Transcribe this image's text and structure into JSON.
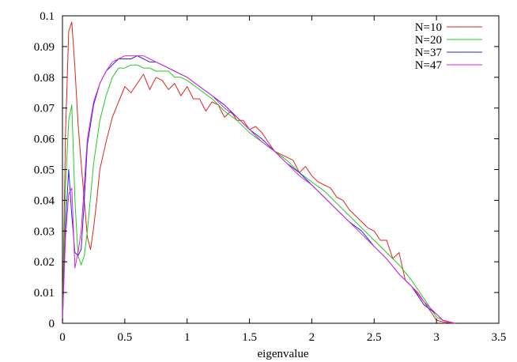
{
  "chart_data": {
    "type": "line",
    "title": "",
    "xlabel": "eigenvalue",
    "ylabel": "",
    "xlim": [
      0,
      3.5
    ],
    "ylim": [
      0,
      0.1
    ],
    "xticks": [
      0,
      0.5,
      1,
      1.5,
      2,
      2.5,
      3,
      3.5
    ],
    "yticks": [
      0,
      0.01,
      0.02,
      0.03,
      0.04,
      0.05,
      0.06,
      0.07,
      0.08,
      0.09,
      0.1
    ],
    "xtick_labels": [
      "0",
      "0.5",
      "1",
      "1.5",
      "2",
      "2.5",
      "3",
      "3.5"
    ],
    "ytick_labels": [
      "0",
      "0.01",
      "0.02",
      "0.03",
      "0.04",
      "0.05",
      "0.06",
      "0.07",
      "0.08",
      "0.09",
      "0.1"
    ],
    "grid": false,
    "legend_position": "top-right",
    "series": [
      {
        "name": "N=10",
        "color": "#e0251f",
        "x": [
          0,
          0.025,
          0.05,
          0.075,
          0.1,
          0.125,
          0.15,
          0.175,
          0.2,
          0.225,
          0.25,
          0.275,
          0.3,
          0.35,
          0.4,
          0.45,
          0.5,
          0.55,
          0.6,
          0.65,
          0.7,
          0.75,
          0.8,
          0.85,
          0.9,
          0.95,
          1,
          1.05,
          1.1,
          1.15,
          1.2,
          1.25,
          1.3,
          1.35,
          1.4,
          1.45,
          1.5,
          1.55,
          1.6,
          1.65,
          1.7,
          1.75,
          1.8,
          1.85,
          1.9,
          1.95,
          2,
          2.05,
          2.1,
          2.15,
          2.2,
          2.25,
          2.3,
          2.35,
          2.4,
          2.45,
          2.5,
          2.55,
          2.6,
          2.65,
          2.7,
          2.75,
          2.8,
          2.85,
          2.9,
          2.95,
          3,
          3.05,
          3.1,
          3.15
        ],
        "values": [
          0.0,
          0.062,
          0.095,
          0.098,
          0.083,
          0.065,
          0.052,
          0.04,
          0.028,
          0.024,
          0.031,
          0.04,
          0.05,
          0.059,
          0.067,
          0.072,
          0.077,
          0.075,
          0.078,
          0.081,
          0.076,
          0.08,
          0.079,
          0.076,
          0.078,
          0.074,
          0.077,
          0.073,
          0.073,
          0.069,
          0.072,
          0.071,
          0.067,
          0.069,
          0.066,
          0.066,
          0.063,
          0.064,
          0.062,
          0.059,
          0.056,
          0.055,
          0.054,
          0.053,
          0.049,
          0.051,
          0.048,
          0.046,
          0.045,
          0.044,
          0.041,
          0.04,
          0.037,
          0.035,
          0.033,
          0.031,
          0.03,
          0.027,
          0.027,
          0.021,
          0.023,
          0.014,
          0.012,
          0.01,
          0.007,
          0.004,
          0.001,
          0.0005,
          0.0002,
          0.0
        ]
      },
      {
        "name": "N=20",
        "color": "#22cc22",
        "x": [
          0,
          0.025,
          0.05,
          0.075,
          0.1,
          0.125,
          0.15,
          0.175,
          0.2,
          0.225,
          0.25,
          0.3,
          0.35,
          0.4,
          0.45,
          0.5,
          0.55,
          0.6,
          0.65,
          0.7,
          0.75,
          0.8,
          0.85,
          0.9,
          0.95,
          1,
          1.1,
          1.2,
          1.3,
          1.4,
          1.5,
          1.6,
          1.7,
          1.8,
          1.9,
          2,
          2.1,
          2.2,
          2.3,
          2.4,
          2.5,
          2.6,
          2.7,
          2.8,
          2.9,
          3,
          3.05,
          3.1,
          3.15
        ],
        "values": [
          0.0,
          0.045,
          0.066,
          0.071,
          0.04,
          0.022,
          0.019,
          0.022,
          0.03,
          0.041,
          0.052,
          0.066,
          0.074,
          0.08,
          0.083,
          0.083,
          0.084,
          0.084,
          0.083,
          0.083,
          0.082,
          0.082,
          0.082,
          0.08,
          0.08,
          0.079,
          0.076,
          0.073,
          0.069,
          0.066,
          0.062,
          0.059,
          0.056,
          0.053,
          0.049,
          0.046,
          0.043,
          0.039,
          0.035,
          0.031,
          0.027,
          0.023,
          0.019,
          0.014,
          0.008,
          0.002,
          0.001,
          0.0005,
          0.0
        ]
      },
      {
        "name": "N=37",
        "color": "#2a2ad6",
        "x": [
          0,
          0.025,
          0.05,
          0.075,
          0.1,
          0.125,
          0.15,
          0.175,
          0.2,
          0.25,
          0.3,
          0.35,
          0.4,
          0.45,
          0.5,
          0.55,
          0.6,
          0.65,
          0.7,
          0.75,
          0.8,
          0.85,
          0.9,
          0.95,
          1,
          1.1,
          1.2,
          1.3,
          1.4,
          1.5,
          1.6,
          1.7,
          1.8,
          1.9,
          2,
          2.1,
          2.2,
          2.3,
          2.4,
          2.5,
          2.6,
          2.7,
          2.8,
          2.9,
          3,
          3.05,
          3.1,
          3.15
        ],
        "values": [
          0.0,
          0.032,
          0.05,
          0.035,
          0.023,
          0.022,
          0.024,
          0.04,
          0.058,
          0.071,
          0.078,
          0.082,
          0.084,
          0.086,
          0.086,
          0.086,
          0.087,
          0.086,
          0.085,
          0.085,
          0.084,
          0.083,
          0.082,
          0.081,
          0.08,
          0.077,
          0.074,
          0.071,
          0.067,
          0.063,
          0.06,
          0.056,
          0.052,
          0.049,
          0.045,
          0.041,
          0.037,
          0.033,
          0.03,
          0.025,
          0.021,
          0.016,
          0.012,
          0.006,
          0.003,
          0.001,
          0.0005,
          0.0
        ]
      },
      {
        "name": "N=47",
        "color": "#dd22dd",
        "x": [
          0,
          0.025,
          0.05,
          0.075,
          0.1,
          0.125,
          0.15,
          0.175,
          0.2,
          0.25,
          0.3,
          0.35,
          0.4,
          0.45,
          0.5,
          0.55,
          0.6,
          0.65,
          0.7,
          0.75,
          0.8,
          0.85,
          0.9,
          0.95,
          1,
          1.1,
          1.2,
          1.3,
          1.4,
          1.5,
          1.6,
          1.7,
          1.8,
          1.9,
          2,
          2.1,
          2.2,
          2.3,
          2.4,
          2.5,
          2.6,
          2.7,
          2.8,
          2.9,
          3,
          3.05,
          3.1,
          3.15
        ],
        "values": [
          0.0,
          0.028,
          0.042,
          0.044,
          0.018,
          0.023,
          0.03,
          0.045,
          0.06,
          0.072,
          0.078,
          0.082,
          0.085,
          0.086,
          0.087,
          0.087,
          0.087,
          0.087,
          0.086,
          0.085,
          0.084,
          0.083,
          0.082,
          0.081,
          0.08,
          0.077,
          0.074,
          0.07,
          0.067,
          0.063,
          0.059,
          0.056,
          0.052,
          0.048,
          0.045,
          0.041,
          0.037,
          0.033,
          0.029,
          0.025,
          0.021,
          0.016,
          0.012,
          0.007,
          0.003,
          0.001,
          0.0005,
          0.0
        ]
      }
    ]
  }
}
